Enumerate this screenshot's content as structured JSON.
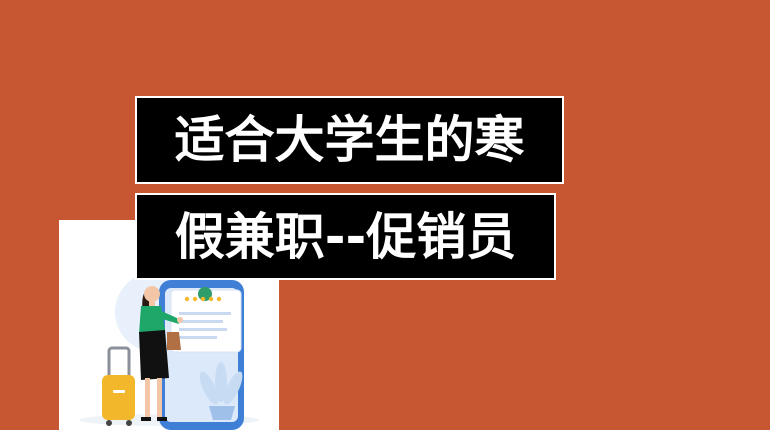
{
  "background_color": "#c75633",
  "title": {
    "line1": "适合大学生的寒",
    "line2": "假兼职--促销员"
  },
  "illustration": {
    "description_icon": "woman-with-phone-and-luggage-icon",
    "rating_stars": 5
  }
}
